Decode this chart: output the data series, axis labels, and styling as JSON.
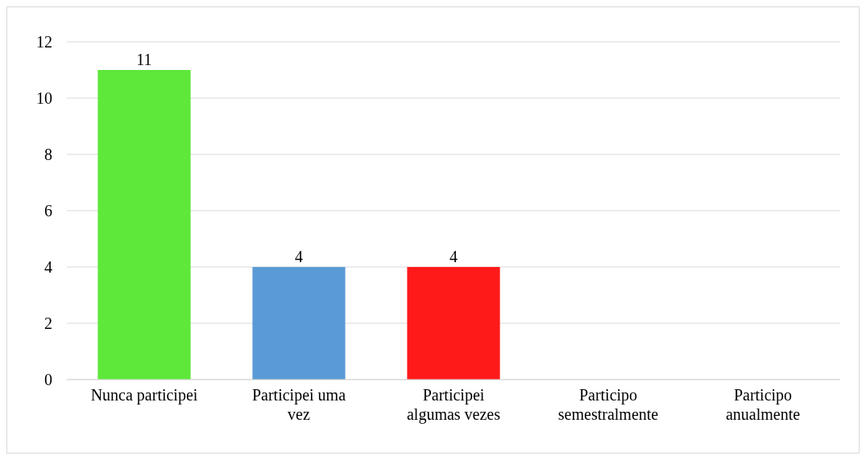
{
  "chart_data": {
    "type": "bar",
    "categories": [
      "Nunca participei",
      "Participei uma vez",
      "Participei algumas vezes",
      "Participo semestralmente",
      "Participo anualmente"
    ],
    "values": [
      11,
      4,
      4,
      0,
      0
    ],
    "colors": [
      "#5ee83a",
      "#5b9bd5",
      "#ff1a1a",
      null,
      null
    ],
    "value_labels": [
      "11",
      "4",
      "4",
      null,
      null
    ],
    "ylim": [
      0,
      12
    ],
    "yticks": [
      0,
      2,
      4,
      6,
      8,
      10,
      12
    ],
    "grid": "y"
  }
}
